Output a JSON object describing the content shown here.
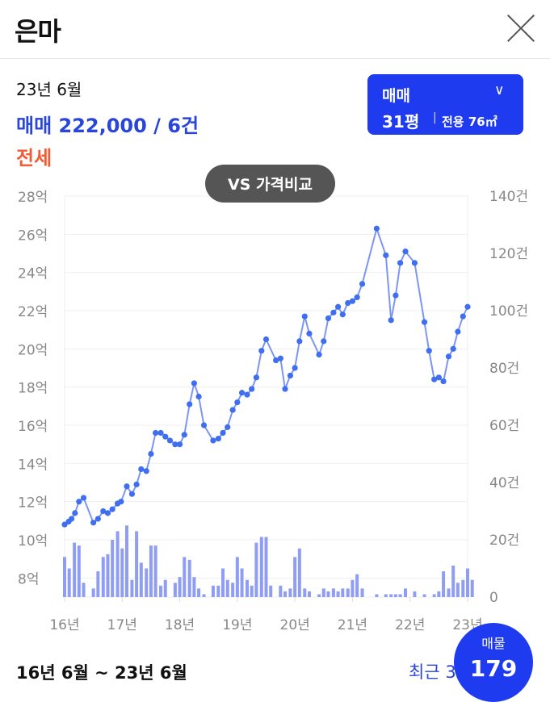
{
  "header": {
    "title": "은마"
  },
  "summary": {
    "date": "23년 6월",
    "sale": "매매 222,000 / 6건",
    "lease": "전세"
  },
  "type_selector": {
    "type": "매매",
    "pyeong": "31평",
    "area": "전용 76㎡"
  },
  "vs_button": "VS 가격비교",
  "footer": {
    "period": "16년 6월 ~ 23년 6월",
    "recent": "최근 3",
    "listing_label": "매물",
    "listing_count": "179"
  },
  "colors": {
    "accent": "#1f3bf0",
    "price_line": "#7d95f3",
    "point": "#3f6ef0",
    "volume_bar": "#8f9df3",
    "lease": "#f25c35"
  },
  "chart_data": {
    "type": "line",
    "x_tick_labels": [
      "16년",
      "17년",
      "18년",
      "19년",
      "20년",
      "21년",
      "22년",
      "23년"
    ],
    "y_left_tick_labels": [
      "8억",
      "10억",
      "12억",
      "14억",
      "16억",
      "18억",
      "20억",
      "22억",
      "24억",
      "26억",
      "28억"
    ],
    "y_right_tick_labels": [
      "0",
      "20건",
      "40건",
      "60건",
      "80건",
      "100건",
      "120건",
      "140건"
    ],
    "y_left_range": [
      7,
      28
    ],
    "y_right_range": [
      0,
      140
    ],
    "x_range": [
      2016.0,
      2023.0
    ],
    "grid": true,
    "series": [
      {
        "axis": "left",
        "unit": "억",
        "points": [
          [
            2016.0,
            10.8
          ],
          [
            2016.07,
            10.95
          ],
          [
            2016.12,
            11.1
          ],
          [
            2016.18,
            11.4
          ],
          [
            2016.25,
            12.0
          ],
          [
            2016.33,
            12.2
          ],
          [
            2016.5,
            10.9
          ],
          [
            2016.58,
            11.1
          ],
          [
            2016.67,
            11.5
          ],
          [
            2016.75,
            11.4
          ],
          [
            2016.83,
            11.6
          ],
          [
            2016.92,
            11.9
          ],
          [
            2016.98,
            12.0
          ],
          [
            2017.08,
            12.8
          ],
          [
            2017.17,
            12.4
          ],
          [
            2017.25,
            12.9
          ],
          [
            2017.33,
            13.7
          ],
          [
            2017.42,
            13.6
          ],
          [
            2017.5,
            14.5
          ],
          [
            2017.58,
            15.6
          ],
          [
            2017.67,
            15.6
          ],
          [
            2017.75,
            15.4
          ],
          [
            2017.83,
            15.2
          ],
          [
            2017.92,
            15.0
          ],
          [
            2018.0,
            15.0
          ],
          [
            2018.08,
            15.5
          ],
          [
            2018.17,
            17.1
          ],
          [
            2018.25,
            18.2
          ],
          [
            2018.33,
            17.5
          ],
          [
            2018.42,
            16.0
          ],
          [
            2018.58,
            15.2
          ],
          [
            2018.67,
            15.3
          ],
          [
            2018.75,
            15.6
          ],
          [
            2018.83,
            15.9
          ],
          [
            2018.92,
            16.8
          ],
          [
            2019.0,
            17.2
          ],
          [
            2019.08,
            17.7
          ],
          [
            2019.17,
            17.6
          ],
          [
            2019.25,
            17.9
          ],
          [
            2019.33,
            18.5
          ],
          [
            2019.42,
            19.9
          ],
          [
            2019.5,
            20.5
          ],
          [
            2019.67,
            19.4
          ],
          [
            2019.75,
            19.5
          ],
          [
            2019.83,
            17.9
          ],
          [
            2019.92,
            18.6
          ],
          [
            2020.0,
            19.0
          ],
          [
            2020.08,
            20.4
          ],
          [
            2020.17,
            21.7
          ],
          [
            2020.25,
            20.8
          ],
          [
            2020.42,
            19.7
          ],
          [
            2020.5,
            20.4
          ],
          [
            2020.58,
            21.6
          ],
          [
            2020.67,
            21.9
          ],
          [
            2020.75,
            22.2
          ],
          [
            2020.83,
            21.8
          ],
          [
            2020.92,
            22.4
          ],
          [
            2021.0,
            22.5
          ],
          [
            2021.08,
            22.7
          ],
          [
            2021.17,
            23.4
          ],
          [
            2021.42,
            26.3
          ],
          [
            2021.58,
            24.9
          ],
          [
            2021.67,
            21.5
          ],
          [
            2021.75,
            22.8
          ],
          [
            2021.83,
            24.5
          ],
          [
            2021.92,
            25.1
          ],
          [
            2022.08,
            24.5
          ],
          [
            2022.25,
            21.4
          ],
          [
            2022.33,
            19.9
          ],
          [
            2022.42,
            18.4
          ],
          [
            2022.5,
            18.5
          ],
          [
            2022.58,
            18.3
          ],
          [
            2022.67,
            19.6
          ],
          [
            2022.75,
            20.0
          ],
          [
            2022.83,
            20.9
          ],
          [
            2022.92,
            21.7
          ],
          [
            2023.0,
            22.2
          ]
        ]
      },
      {
        "axis": "right",
        "unit": "건",
        "type": "bar",
        "points": [
          [
            2016.0,
            14
          ],
          [
            2016.08,
            10
          ],
          [
            2016.17,
            19
          ],
          [
            2016.25,
            18
          ],
          [
            2016.33,
            5
          ],
          [
            2016.5,
            3
          ],
          [
            2016.58,
            9
          ],
          [
            2016.67,
            14
          ],
          [
            2016.75,
            15
          ],
          [
            2016.83,
            20
          ],
          [
            2016.92,
            23
          ],
          [
            2017.0,
            17
          ],
          [
            2017.08,
            25
          ],
          [
            2017.17,
            6
          ],
          [
            2017.25,
            23
          ],
          [
            2017.33,
            12
          ],
          [
            2017.42,
            10
          ],
          [
            2017.5,
            18
          ],
          [
            2017.58,
            18
          ],
          [
            2017.67,
            4
          ],
          [
            2017.75,
            6
          ],
          [
            2017.92,
            5
          ],
          [
            2018.0,
            7
          ],
          [
            2018.08,
            14
          ],
          [
            2018.17,
            13
          ],
          [
            2018.25,
            7
          ],
          [
            2018.33,
            3
          ],
          [
            2018.42,
            1
          ],
          [
            2018.58,
            4
          ],
          [
            2018.67,
            4
          ],
          [
            2018.75,
            10
          ],
          [
            2018.83,
            6
          ],
          [
            2018.92,
            5
          ],
          [
            2019.0,
            14
          ],
          [
            2019.08,
            10
          ],
          [
            2019.17,
            6
          ],
          [
            2019.25,
            4
          ],
          [
            2019.33,
            19
          ],
          [
            2019.42,
            21
          ],
          [
            2019.5,
            21
          ],
          [
            2019.58,
            4
          ],
          [
            2019.75,
            4
          ],
          [
            2019.83,
            2
          ],
          [
            2019.92,
            3
          ],
          [
            2020.0,
            14
          ],
          [
            2020.08,
            17
          ],
          [
            2020.17,
            3
          ],
          [
            2020.25,
            2
          ],
          [
            2020.42,
            1
          ],
          [
            2020.5,
            3
          ],
          [
            2020.58,
            2
          ],
          [
            2020.67,
            3
          ],
          [
            2020.75,
            2
          ],
          [
            2020.83,
            3
          ],
          [
            2020.92,
            3
          ],
          [
            2021.0,
            6
          ],
          [
            2021.08,
            8
          ],
          [
            2021.17,
            3
          ],
          [
            2021.42,
            1
          ],
          [
            2021.58,
            1
          ],
          [
            2021.67,
            1
          ],
          [
            2021.75,
            1
          ],
          [
            2021.83,
            1
          ],
          [
            2021.92,
            3
          ],
          [
            2022.08,
            2
          ],
          [
            2022.25,
            1
          ],
          [
            2022.42,
            1
          ],
          [
            2022.5,
            2
          ],
          [
            2022.58,
            9
          ],
          [
            2022.67,
            3
          ],
          [
            2022.75,
            11
          ],
          [
            2022.83,
            5
          ],
          [
            2022.92,
            6
          ],
          [
            2023.0,
            10
          ],
          [
            2023.08,
            6
          ]
        ]
      }
    ]
  }
}
